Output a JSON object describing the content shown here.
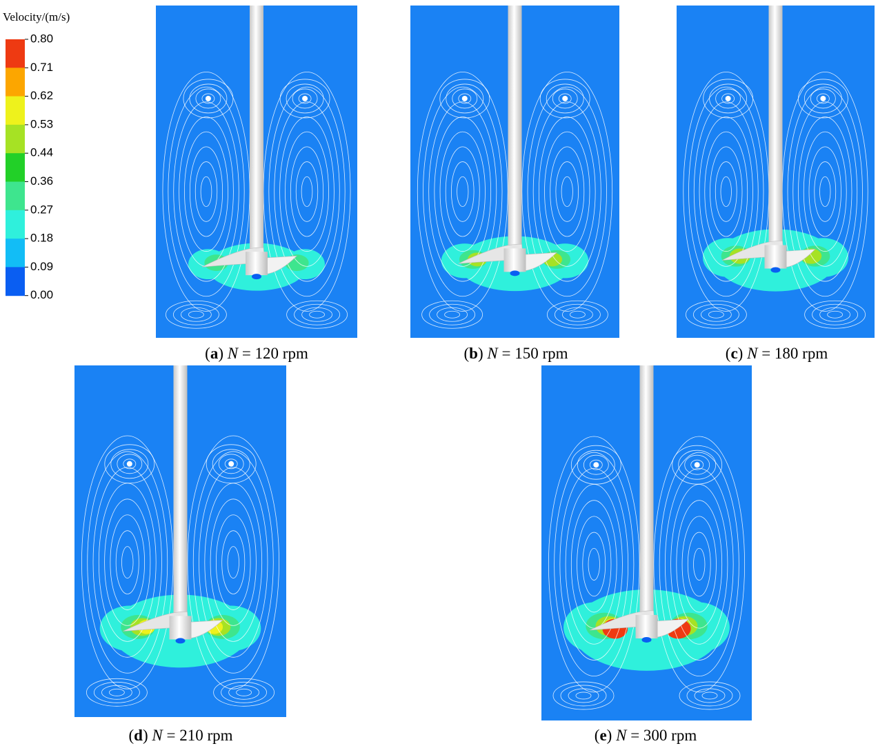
{
  "legend": {
    "title": "Velocity/(m/s)",
    "labels": [
      "0.80",
      "0.71",
      "0.62",
      "0.53",
      "0.44",
      "0.36",
      "0.27",
      "0.18",
      "0.09",
      "0.00"
    ],
    "colors": [
      "#ee3a12",
      "#fca600",
      "#eef21c",
      "#a6e224",
      "#22d028",
      "#3ee58e",
      "#2ff0dc",
      "#12bdf6",
      "#0a5ef2"
    ]
  },
  "panels": [
    {
      "caption": {
        "open": "(",
        "letter": "a",
        "close": ")",
        "symbol": "N",
        "rest": " = 120 rpm"
      }
    },
    {
      "caption": {
        "open": "(",
        "letter": "b",
        "close": ")",
        "symbol": "N",
        "rest": " = 150 rpm"
      }
    },
    {
      "caption": {
        "open": "(",
        "letter": "c",
        "close": ")",
        "symbol": "N",
        "rest": " = 180 rpm"
      }
    },
    {
      "caption": {
        "open": "(",
        "letter": "d",
        "close": ")",
        "symbol": "N",
        "rest": " = 210 rpm"
      }
    },
    {
      "caption": {
        "open": "(",
        "letter": "e",
        "close": ")",
        "symbol": "N",
        "rest": " = 300 rpm"
      }
    }
  ]
}
